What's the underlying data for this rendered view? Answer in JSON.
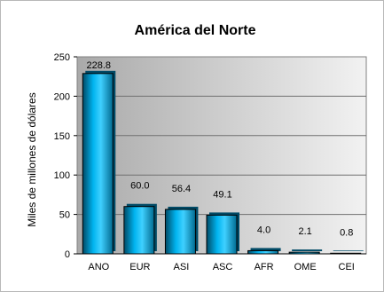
{
  "chart_data": {
    "type": "bar",
    "title": "América del Norte",
    "xlabel": "",
    "ylabel": "Miles de millones de dólares",
    "categories": [
      "ANO",
      "EUR",
      "ASI",
      "ASC",
      "AFR",
      "OME",
      "CEI"
    ],
    "values": [
      228.8,
      60.0,
      56.4,
      49.1,
      4.0,
      2.1,
      0.8
    ],
    "value_labels": [
      "228.8",
      "60.0",
      "56.4",
      "49.1",
      "4.0",
      "2.1",
      "0.8"
    ],
    "ylim": [
      0,
      250
    ],
    "yticks": [
      0,
      50,
      100,
      150,
      200,
      250
    ],
    "ytick_labels": [
      "0",
      "50",
      "100",
      "150",
      "200",
      "250"
    ],
    "grid": true,
    "bar_color": "#00AEEF",
    "bar_dark_color": "#005A7A",
    "plot_background": "#C8C8C8"
  }
}
